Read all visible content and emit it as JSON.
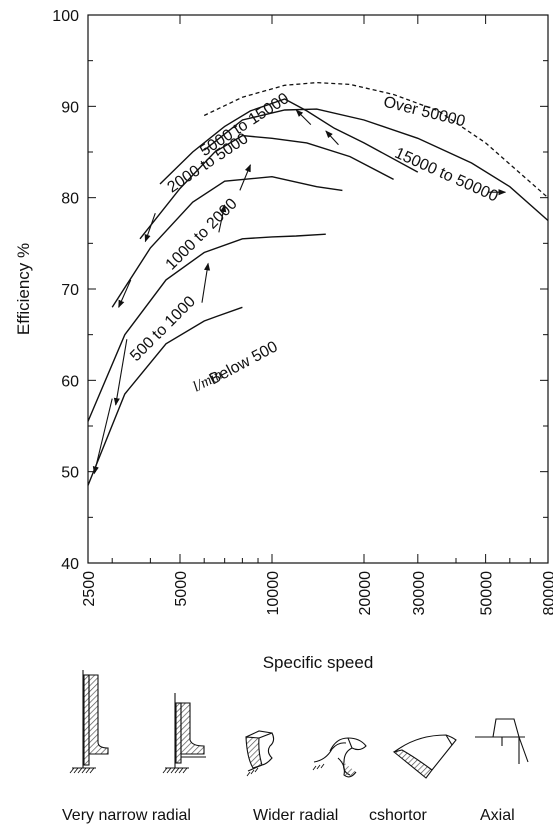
{
  "chart_data": {
    "type": "line",
    "title": "",
    "xlabel": "Specific speed",
    "ylabel": "Efficiency %",
    "x_scale": "log",
    "xlim": [
      2500,
      80000
    ],
    "ylim": [
      40,
      100
    ],
    "x_ticks": [
      2500,
      5000,
      10000,
      20000,
      30000,
      50000,
      80000
    ],
    "y_ticks": [
      40,
      50,
      60,
      70,
      80,
      90,
      100
    ],
    "grid": false,
    "flow_unit": "l/min",
    "series": [
      {
        "name": "Below 500",
        "x": [
          2500,
          3300,
          4500,
          6000,
          6600,
          8000
        ],
        "y": [
          48.5,
          58.5,
          64,
          66.5,
          67,
          68
        ],
        "label_at": [
          6400,
          59.5
        ],
        "label_rot": -28
      },
      {
        "name": "500 to 1000",
        "x": [
          2500,
          3300,
          4500,
          6000,
          8000,
          10000,
          12000,
          15000
        ],
        "y": [
          55.5,
          65,
          71,
          74,
          75.5,
          75.7,
          75.8,
          76
        ],
        "label_at": [
          3600,
          62
        ],
        "label_rot": -45
      },
      {
        "name": "1000 to 2000",
        "x": [
          3000,
          4000,
          5500,
          7000,
          10000,
          14000,
          17000
        ],
        "y": [
          68,
          74.5,
          79.5,
          81.8,
          82.3,
          81.2,
          80.8
        ],
        "label_at": [
          4700,
          72
        ],
        "label_rot": -45
      },
      {
        "name": "2000 to 5000",
        "x": [
          3700,
          5000,
          6500,
          8000,
          10000,
          13000,
          18000,
          25000
        ],
        "y": [
          75.5,
          81,
          85,
          86.8,
          86.5,
          86,
          84.5,
          82
        ],
        "label_at": [
          4700,
          80.5
        ],
        "label_rot": -34
      },
      {
        "name": "5000 to 15000",
        "x": [
          4300,
          5500,
          7000,
          8500,
          11000,
          13000,
          16000,
          20000,
          30000
        ],
        "y": [
          81.5,
          85,
          87.8,
          89.5,
          90.8,
          89.5,
          87.6,
          86,
          82.8
        ],
        "label_at": [
          6000,
          84.5
        ],
        "label_rot": -33
      },
      {
        "name": "15000 to 50000",
        "x": [
          6000,
          8000,
          11000,
          14000,
          20000,
          30000,
          45000,
          60000,
          80000
        ],
        "y": [
          85.2,
          88.5,
          89.6,
          89.7,
          88.5,
          86.5,
          83.8,
          81.2,
          77.5
        ],
        "label_at": [
          25000,
          84.5
        ],
        "label_rot": 24
      },
      {
        "name": "Over 50000",
        "x": [
          6000,
          8000,
          11000,
          14000,
          18000,
          25000,
          35000,
          50000,
          80000
        ],
        "y": [
          89,
          91,
          92.3,
          92.6,
          92.4,
          91.3,
          89.5,
          86,
          80
        ],
        "style": "dashed",
        "label_at": [
          23000,
          90
        ],
        "label_rot": 14
      }
    ],
    "arrows": [
      {
        "from": [
          3000,
          58
        ],
        "to": [
          2620,
          49.8
        ]
      },
      {
        "from": [
          3350,
          64.5
        ],
        "to": [
          3080,
          57.3
        ]
      },
      {
        "from": [
          3450,
          71
        ],
        "to": [
          3150,
          68
        ]
      },
      {
        "from": [
          4150,
          78.3
        ],
        "to": [
          3850,
          75.2
        ]
      },
      {
        "from": [
          5900,
          68.5
        ],
        "to": [
          6180,
          72.8
        ]
      },
      {
        "from": [
          6700,
          76.2
        ],
        "to": [
          7000,
          79.2
        ]
      },
      {
        "from": [
          7850,
          80.8
        ],
        "to": [
          8500,
          83.6
        ]
      },
      {
        "from": [
          13400,
          88
        ],
        "to": [
          12000,
          89.6
        ]
      },
      {
        "from": [
          16500,
          85.8
        ],
        "to": [
          15000,
          87.3
        ]
      },
      {
        "from": [
          51000,
          80.6
        ],
        "to": [
          58000,
          80.6
        ]
      }
    ]
  },
  "impellers": {
    "labels": [
      "Very narrow radial",
      "Wider radial",
      "cshortor",
      "Axial"
    ]
  }
}
